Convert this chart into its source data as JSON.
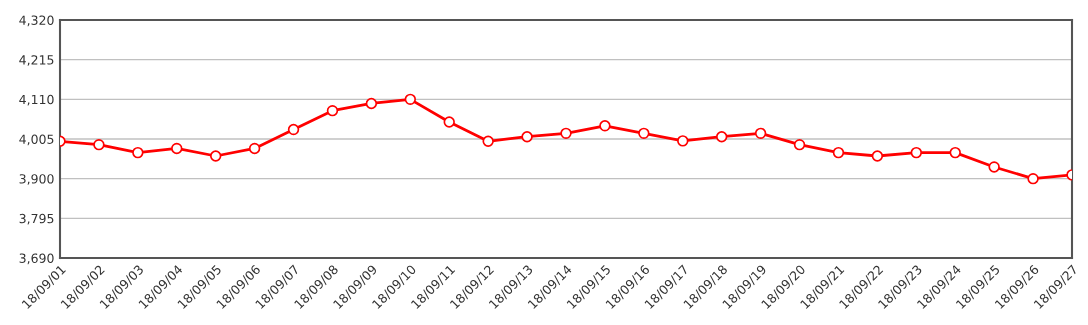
{
  "chart_data": {
    "type": "line",
    "categories": [
      "18/09/01",
      "18/09/02",
      "18/09/03",
      "18/09/04",
      "18/09/05",
      "18/09/06",
      "18/09/07",
      "18/09/08",
      "18/09/09",
      "18/09/10",
      "18/09/11",
      "18/09/12",
      "18/09/13",
      "18/09/14",
      "18/09/15",
      "18/09/16",
      "18/09/17",
      "18/09/18",
      "18/09/19",
      "18/09/20",
      "18/09/21",
      "18/09/22",
      "18/09/23",
      "18/09/24",
      "18/09/25",
      "18/09/26",
      "18/09/27"
    ],
    "series": [
      {
        "color": "#ff0000",
        "values": [
          3999,
          3990,
          3969,
          3980,
          3960,
          3980,
          4030,
          4080,
          4099,
          4110,
          4050,
          3999,
          4011,
          4020,
          4040,
          4020,
          4000,
          4011,
          4020,
          3990,
          3969,
          3960,
          3969,
          3969,
          3931,
          3900,
          3910
        ]
      }
    ],
    "ylim": [
      3690,
      4320
    ],
    "yticks": [
      {
        "value": 3690,
        "label": "3,690"
      },
      {
        "value": 3795,
        "label": "3,795"
      },
      {
        "value": 3900,
        "label": "3,900"
      },
      {
        "value": 4005,
        "label": "4,005"
      },
      {
        "value": 4110,
        "label": "4,110"
      },
      {
        "value": 4215,
        "label": "4,215"
      },
      {
        "value": 4320,
        "label": "4,320"
      }
    ],
    "grid": "y",
    "marker": "circle",
    "line_style": "solid",
    "legend": false
  }
}
